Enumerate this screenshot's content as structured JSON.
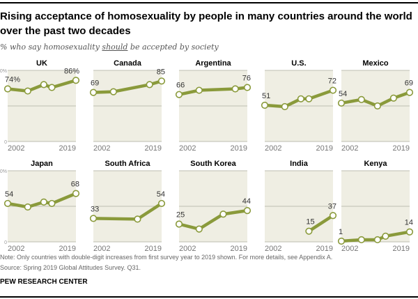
{
  "header": {
    "title_line1": "Rising acceptance of homosexuality by people in many countries around the world",
    "title_line2": "over the past two decades",
    "subtitle_pre": "% who say homosexuality ",
    "subtitle_emph": "should",
    "subtitle_post": " be accepted by society"
  },
  "footer": {
    "note": "Note: Only countries with double-digit increases from first survey year to 2019 shown. For more details, see Appendix A.",
    "source": "Source: Spring 2019 Global Attitudes Survey. Q31.",
    "org": "PEW RESEARCH CENTER"
  },
  "colors": {
    "line": "#8a9a3b",
    "marker_fill": "#ffffff",
    "panel_bg": "#efeee3",
    "grid": "#bdbdb0",
    "label": "#333333",
    "axis_text": "#777777"
  },
  "chart_data": {
    "type": "line",
    "title": "Rising acceptance of homosexuality by people in many countries around the world over the past two decades",
    "ylabel": "% who say homosexuality should be accepted by society",
    "xlim": [
      2002,
      2019
    ],
    "ylim": [
      0,
      100
    ],
    "yticks": [
      "100%",
      "50",
      "0"
    ],
    "x_tick_labels": [
      "2002",
      "2019"
    ],
    "grid": true,
    "panels": [
      {
        "name": "UK",
        "x": [
          2002,
          2007,
          2011,
          2013,
          2019
        ],
        "values": [
          74,
          71,
          80,
          76,
          86
        ],
        "first_label": "74%",
        "last_label": "86%"
      },
      {
        "name": "Canada",
        "x": [
          2002,
          2007,
          2016,
          2019
        ],
        "values": [
          69,
          70,
          80,
          85
        ],
        "first_label": "69",
        "last_label": "85"
      },
      {
        "name": "Argentina",
        "x": [
          2002,
          2007,
          2016,
          2019
        ],
        "values": [
          66,
          72,
          74,
          76
        ],
        "first_label": "66",
        "last_label": "76"
      },
      {
        "name": "U.S.",
        "x": [
          2002,
          2007,
          2011,
          2013,
          2019
        ],
        "values": [
          51,
          49,
          60,
          60,
          72
        ],
        "first_label": "51",
        "last_label": "72"
      },
      {
        "name": "Mexico",
        "x": [
          2002,
          2007,
          2011,
          2015,
          2019
        ],
        "values": [
          54,
          59,
          50,
          61,
          69
        ],
        "first_label": "54",
        "last_label": "69"
      },
      {
        "name": "Japan",
        "x": [
          2002,
          2007,
          2011,
          2013,
          2019
        ],
        "values": [
          54,
          49,
          56,
          54,
          68
        ],
        "first_label": "54",
        "last_label": "68"
      },
      {
        "name": "South Africa",
        "x": [
          2002,
          2013,
          2019
        ],
        "values": [
          33,
          32,
          54
        ],
        "first_label": "33",
        "last_label": "54"
      },
      {
        "name": "South Korea",
        "x": [
          2002,
          2007,
          2013,
          2019
        ],
        "values": [
          25,
          18,
          39,
          44
        ],
        "first_label": "25",
        "last_label": "44"
      },
      {
        "name": "India",
        "x": [
          2013,
          2019
        ],
        "values": [
          15,
          37
        ],
        "first_label": "15",
        "last_label": "37"
      },
      {
        "name": "Kenya",
        "x": [
          2002,
          2007,
          2011,
          2013,
          2019
        ],
        "values": [
          1,
          3,
          3,
          8,
          14
        ],
        "first_label": "1",
        "last_label": "14"
      }
    ]
  }
}
